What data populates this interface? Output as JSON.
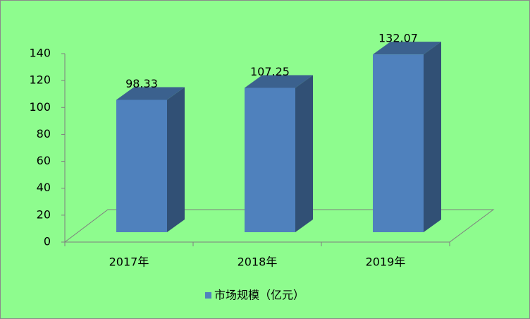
{
  "chart_data": {
    "type": "bar3d",
    "categories": [
      "2017年",
      "2018年",
      "2019年"
    ],
    "series": [
      {
        "name": "市场规模（亿元）",
        "color": "#4f81bd",
        "values": [
          98.33,
          107.25,
          132.07
        ]
      }
    ],
    "ylim": [
      0,
      140
    ],
    "yticks": [
      0,
      20,
      40,
      60,
      80,
      100,
      120,
      140
    ],
    "legend": "bottom"
  }
}
